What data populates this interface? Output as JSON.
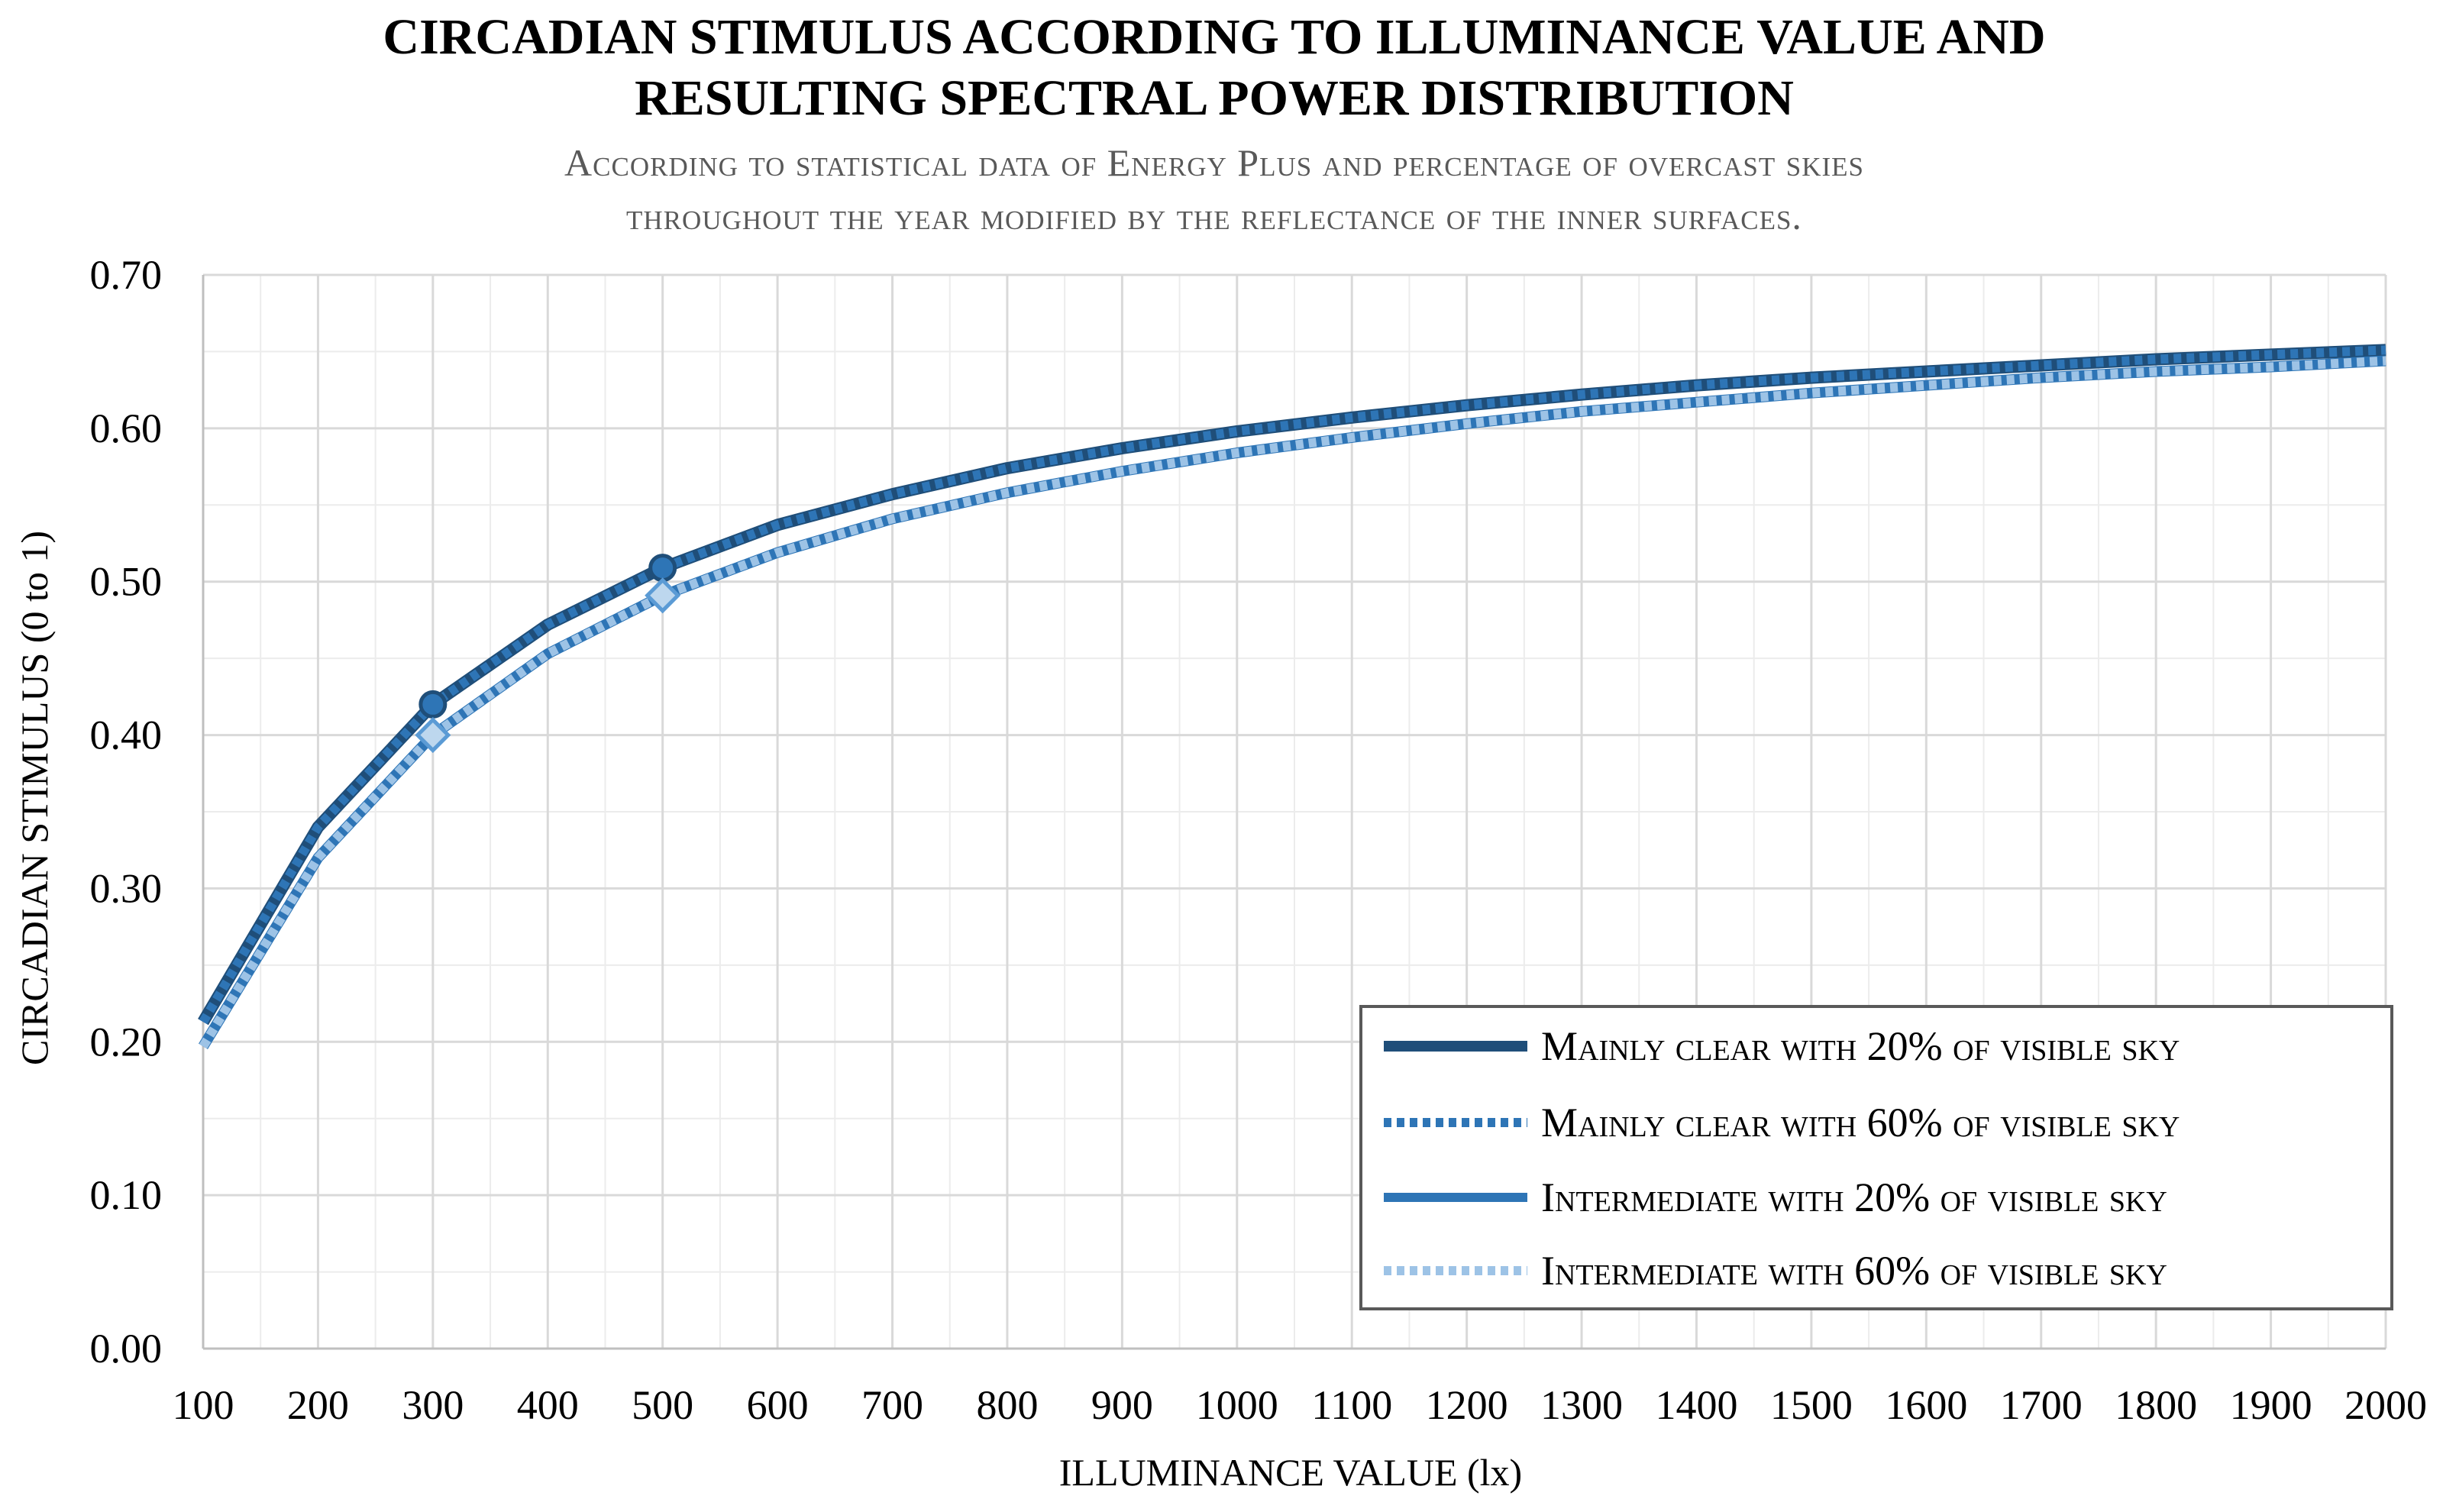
{
  "chart_data": {
    "type": "line",
    "title_line1": "CIRCADIAN STIMULUS ACCORDING TO ILLUMINANCE VALUE AND",
    "title_line2": "RESULTING SPECTRAL POWER DISTRIBUTION",
    "subtitle_line1": "According to statistical data of Energy Plus and percentage of overcast skies",
    "subtitle_line2": "throughout the year modified by the reflectance of the inner surfaces.",
    "xlabel": "ILLUMINANCE VALUE (lx)",
    "ylabel": "CIRCADIAN STIMULUS (0 to 1)",
    "xlim": [
      100,
      2000
    ],
    "ylim": [
      0,
      0.7
    ],
    "x_ticks": [
      "100",
      "200",
      "300",
      "400",
      "500",
      "600",
      "700",
      "800",
      "900",
      "1000",
      "1100",
      "1200",
      "1300",
      "1400",
      "1500",
      "1600",
      "1700",
      "1800",
      "1900",
      "2000"
    ],
    "y_ticks": [
      "0.00",
      "0.10",
      "0.20",
      "0.30",
      "0.40",
      "0.50",
      "0.60",
      "0.70"
    ],
    "grid": true,
    "legend_position": "bottom-right",
    "x": [
      100,
      200,
      300,
      400,
      500,
      600,
      700,
      800,
      900,
      1000,
      1100,
      1200,
      1300,
      1400,
      1500,
      1600,
      1700,
      1800,
      1900,
      2000
    ],
    "series": [
      {
        "name": "Mainly clear with 20% of visible sky",
        "color": "#1f4e79",
        "style": "solid",
        "values": [
          0.213,
          0.34,
          0.42,
          0.472,
          0.509,
          0.537,
          0.557,
          0.574,
          0.587,
          0.598,
          0.607,
          0.615,
          0.622,
          0.628,
          0.633,
          0.637,
          0.641,
          0.645,
          0.648,
          0.651
        ],
        "markers": [
          {
            "x": 300,
            "y": 0.42
          },
          {
            "x": 500,
            "y": 0.509
          }
        ]
      },
      {
        "name": "Mainly clear with 60% of visible sky",
        "color": "#2e75b6",
        "style": "dotted",
        "values": [
          0.213,
          0.34,
          0.42,
          0.472,
          0.509,
          0.537,
          0.557,
          0.574,
          0.587,
          0.598,
          0.607,
          0.615,
          0.622,
          0.628,
          0.633,
          0.637,
          0.641,
          0.645,
          0.648,
          0.651
        ],
        "markers": []
      },
      {
        "name": "Intermediate with 20% of visible sky",
        "color": "#2e75b6",
        "style": "solid",
        "values": [
          0.197,
          0.32,
          0.4,
          0.453,
          0.491,
          0.519,
          0.541,
          0.558,
          0.572,
          0.584,
          0.594,
          0.603,
          0.611,
          0.617,
          0.623,
          0.628,
          0.633,
          0.637,
          0.64,
          0.644
        ],
        "markers": []
      },
      {
        "name": "Intermediate with 60% of visible sky",
        "color": "#9dc3e6",
        "style": "dotted",
        "values": [
          0.197,
          0.32,
          0.4,
          0.453,
          0.491,
          0.519,
          0.541,
          0.558,
          0.572,
          0.584,
          0.594,
          0.603,
          0.611,
          0.617,
          0.623,
          0.628,
          0.633,
          0.637,
          0.64,
          0.644
        ],
        "markers": [
          {
            "x": 300,
            "y": 0.4
          },
          {
            "x": 500,
            "y": 0.491
          }
        ]
      }
    ]
  }
}
